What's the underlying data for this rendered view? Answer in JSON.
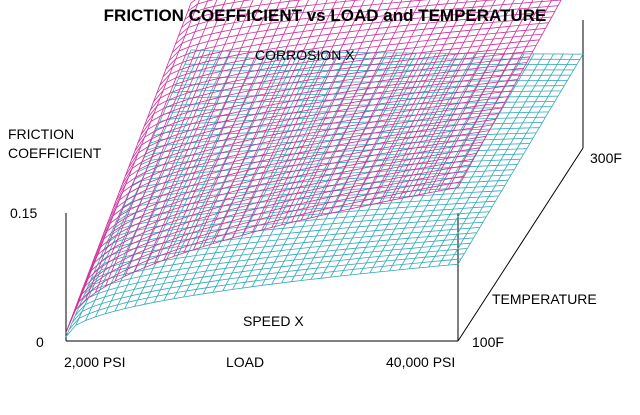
{
  "chart_data": {
    "type": "surface",
    "title": "FRICTION COEFFICIENT vs LOAD and TEMPERATURE",
    "zlabel_line1": "FRICTION",
    "zlabel_line2": "COEFFICIENT",
    "xlabel": "LOAD",
    "ylabel": "TEMPERATURE",
    "x_ticks": [
      "2,000 PSI",
      "40,000 PSI"
    ],
    "y_ticks": [
      "100F",
      "300F"
    ],
    "z_ticks": [
      "0",
      "0.15"
    ],
    "x_range": [
      2000,
      40000
    ],
    "y_range": [
      100,
      300
    ],
    "z_range": [
      0,
      0.15
    ],
    "grid": false,
    "series": [
      {
        "name": "CORROSION X",
        "color": "#d0309a",
        "z_at_corners": {
          "low_load_low_temp": 0.01,
          "high_load_low_temp": 0.18,
          "low_load_high_temp": 0.17,
          "high_load_high_temp": 0.22
        }
      },
      {
        "name": "SPEED X",
        "color": "#30a8b8",
        "z_at_corners": {
          "low_load_low_temp": 0.005,
          "high_load_low_temp": 0.09,
          "low_load_high_temp": 0.115,
          "high_load_high_temp": 0.11
        }
      }
    ]
  }
}
